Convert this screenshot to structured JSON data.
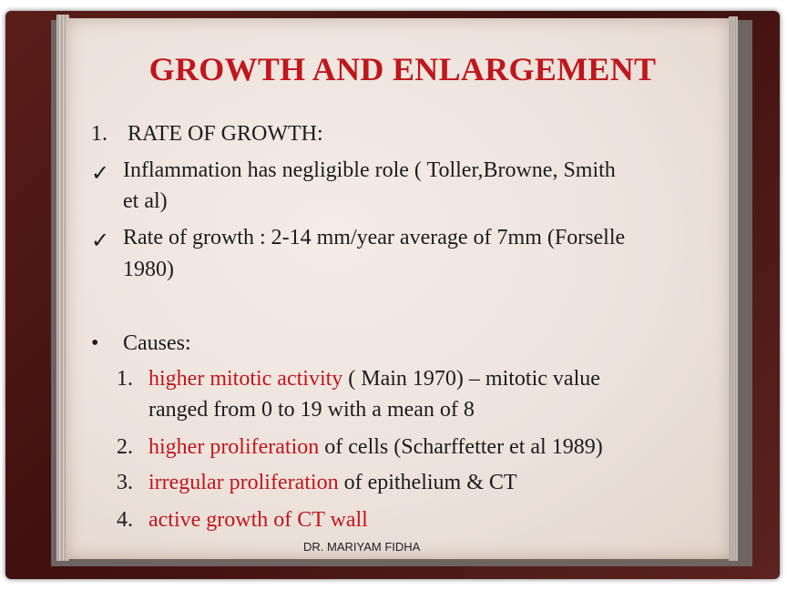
{
  "slide": {
    "title": "GROWTH AND ENLARGEMENT",
    "section1": {
      "number": "1.",
      "heading": "RATE OF GROWTH:",
      "bullets": [
        {
          "icon": "checkmark-icon",
          "lines": [
            "Inflammation has negligible role ( Toller,Browne, Smith",
            "et al)"
          ]
        },
        {
          "icon": "checkmark-icon",
          "lines": [
            "Rate of growth : 2-14 mm/year average of 7mm (Forselle",
            "1980)"
          ]
        }
      ]
    },
    "section2": {
      "bullet": "•",
      "heading": "Causes:",
      "items": [
        {
          "number": "1.",
          "highlight": "higher mitotic activity",
          "rest": " ( Main 1970) – mitotic value",
          "continuation": "ranged from 0 to 19 with a mean of 8"
        },
        {
          "number": "2.",
          "highlight": "higher proliferation",
          "rest": " of cells (Scharffetter et al 1989)"
        },
        {
          "number": "3.",
          "highlight": "irregular proliferation",
          "rest": " of epithelium & CT"
        },
        {
          "number": "4.",
          "highlight": "active growth of CT wall",
          "rest": ""
        }
      ]
    },
    "footer": "DR. MARIYAM FIDHA",
    "colors": {
      "title": "#c0161c",
      "highlight": "#c0161c",
      "frame": "#4a1412",
      "paper": "#efe6df"
    }
  }
}
